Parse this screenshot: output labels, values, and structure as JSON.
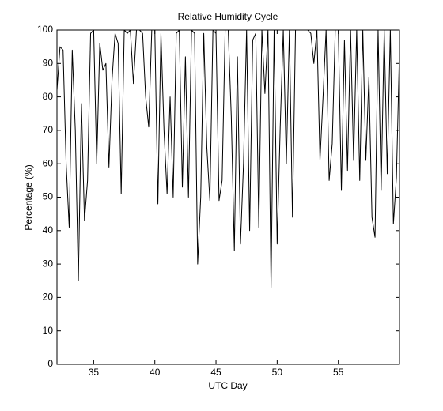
{
  "chart_data": {
    "type": "line",
    "title": "Relative Humidity Cycle",
    "x_label": "UTC Day",
    "y_label": "Percentage (%)",
    "xlim": [
      32,
      60
    ],
    "ylim": [
      0,
      100
    ],
    "xticks": [
      35,
      40,
      45,
      50,
      55
    ],
    "yticks": [
      0,
      10,
      20,
      30,
      40,
      50,
      60,
      70,
      80,
      90,
      100
    ],
    "x": [
      32,
      32.25,
      32.5,
      32.75,
      33,
      33.25,
      33.5,
      33.75,
      34,
      34.25,
      34.5,
      34.75,
      35,
      35.25,
      35.5,
      35.75,
      36,
      36.25,
      36.5,
      36.75,
      37,
      37.25,
      37.5,
      37.75,
      38,
      38.25,
      38.5,
      38.75,
      39,
      39.25,
      39.5,
      39.75,
      40,
      40.25,
      40.5,
      40.75,
      41,
      41.25,
      41.5,
      41.75,
      42,
      42.25,
      42.5,
      42.75,
      43,
      43.25,
      43.5,
      43.75,
      44,
      44.25,
      44.5,
      44.75,
      45,
      45.25,
      45.5,
      45.75,
      46,
      46.25,
      46.5,
      46.75,
      47,
      47.25,
      47.5,
      47.75,
      48,
      48.25,
      48.5,
      48.75,
      49,
      49.25,
      49.5,
      49.75,
      50,
      50.25,
      50.5,
      50.75,
      51,
      51.25,
      51.5,
      51.75,
      52,
      52.25,
      52.5,
      52.75,
      53,
      53.25,
      53.5,
      53.75,
      54,
      54.25,
      54.5,
      54.75,
      55,
      55.25,
      55.5,
      55.75,
      56,
      56.25,
      56.5,
      56.75,
      57,
      57.25,
      57.5,
      57.75,
      58,
      58.25,
      58.5,
      58.75,
      59,
      59.25,
      59.5,
      59.75,
      60
    ],
    "series": [
      {
        "name": "Relative Humidity",
        "color": "#000000",
        "values": [
          82,
          95,
          94,
          60,
          41,
          94,
          70,
          25,
          78,
          43,
          55,
          99,
          100,
          60,
          96,
          88,
          90,
          59,
          85,
          99,
          96,
          51,
          100,
          99,
          100,
          84,
          100,
          100,
          99,
          80,
          71,
          100,
          100,
          48,
          99,
          70,
          51,
          80,
          50,
          99,
          100,
          53,
          92,
          50,
          100,
          99,
          30,
          50,
          99,
          65,
          49,
          100,
          99,
          49,
          55,
          100,
          100,
          74,
          34,
          92,
          36,
          60,
          100,
          40,
          97,
          99,
          41,
          100,
          81,
          100,
          23,
          100,
          36,
          71,
          100,
          60,
          100,
          44,
          100,
          100,
          100,
          100,
          100,
          99,
          90,
          100,
          61,
          80,
          100,
          55,
          66,
          100,
          100,
          52,
          97,
          58,
          100,
          61,
          100,
          55,
          100,
          61,
          86,
          44,
          38,
          100,
          52,
          100,
          57,
          100,
          42,
          56,
          94
        ]
      }
    ]
  }
}
